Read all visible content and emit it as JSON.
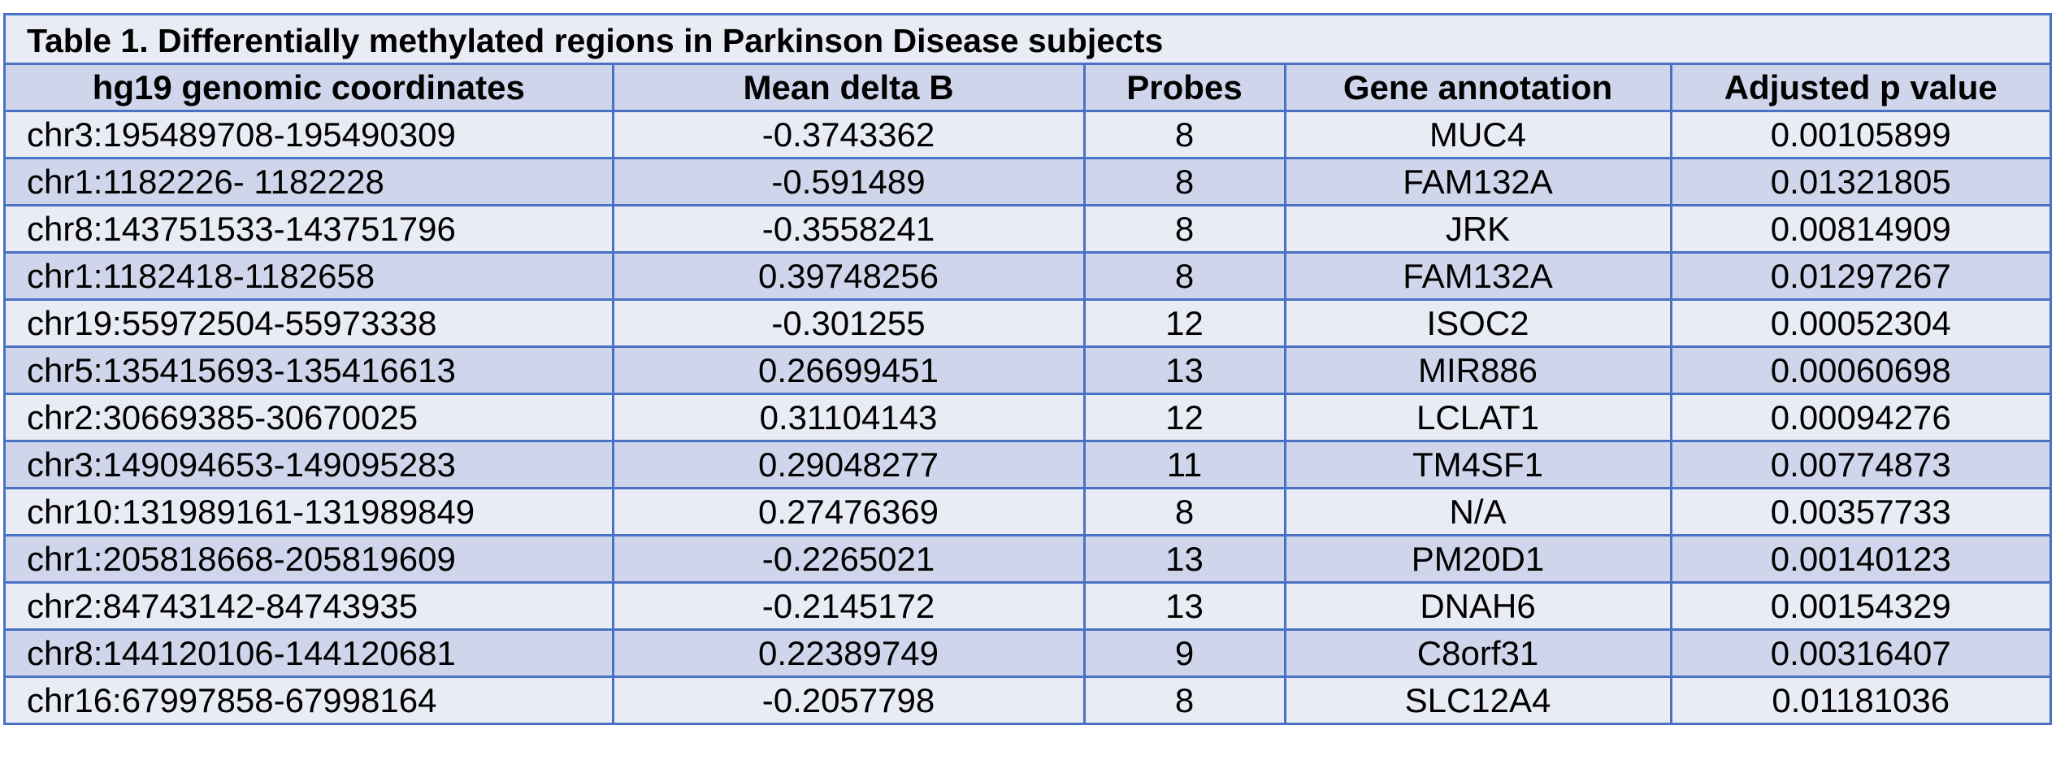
{
  "table": {
    "caption": "Table 1. Differentially methylated regions in Parkinson Disease subjects",
    "headers": [
      "hg19 genomic coordinates",
      "Mean delta B",
      "Probes",
      "Gene annotation",
      "Adjusted p value"
    ],
    "rows": [
      [
        "chr3:195489708-195490309",
        "-0.3743362",
        "8",
        "MUC4",
        "0.00105899"
      ],
      [
        "chr1:1182226- 1182228",
        "-0.591489",
        "8",
        "FAM132A",
        "0.01321805"
      ],
      [
        "chr8:143751533-143751796",
        "-0.3558241",
        "8",
        "JRK",
        "0.00814909"
      ],
      [
        "chr1:1182418-1182658",
        "0.39748256",
        "8",
        "FAM132A",
        "0.01297267"
      ],
      [
        "chr19:55972504-55973338",
        "-0.301255",
        "12",
        "ISOC2",
        "0.00052304"
      ],
      [
        "chr5:135415693-135416613",
        "0.26699451",
        "13",
        "MIR886",
        "0.00060698"
      ],
      [
        "chr2:30669385-30670025",
        "0.31104143",
        "12",
        "LCLAT1",
        "0.00094276"
      ],
      [
        "chr3:149094653-149095283",
        "0.29048277",
        "11",
        "TM4SF1",
        "0.00774873"
      ],
      [
        "chr10:131989161-131989849",
        "0.27476369",
        "8",
        "N/A",
        "0.00357733"
      ],
      [
        "chr1:205818668-205819609",
        "-0.2265021",
        "13",
        "PM20D1",
        "0.00140123"
      ],
      [
        "chr2:84743142-84743935",
        "-0.2145172",
        "13",
        "DNAH6",
        "0.00154329"
      ],
      [
        "chr8:144120106-144120681",
        "0.22389749",
        "9",
        "C8orf31",
        "0.00316407"
      ],
      [
        "chr16:67997858-67998164",
        "-0.2057798",
        "8",
        "SLC12A4",
        "0.01181036"
      ]
    ]
  },
  "colors": {
    "border": "#4a72c4",
    "row_light": "#e9ebf5",
    "row_dark": "#cfd5ea"
  }
}
